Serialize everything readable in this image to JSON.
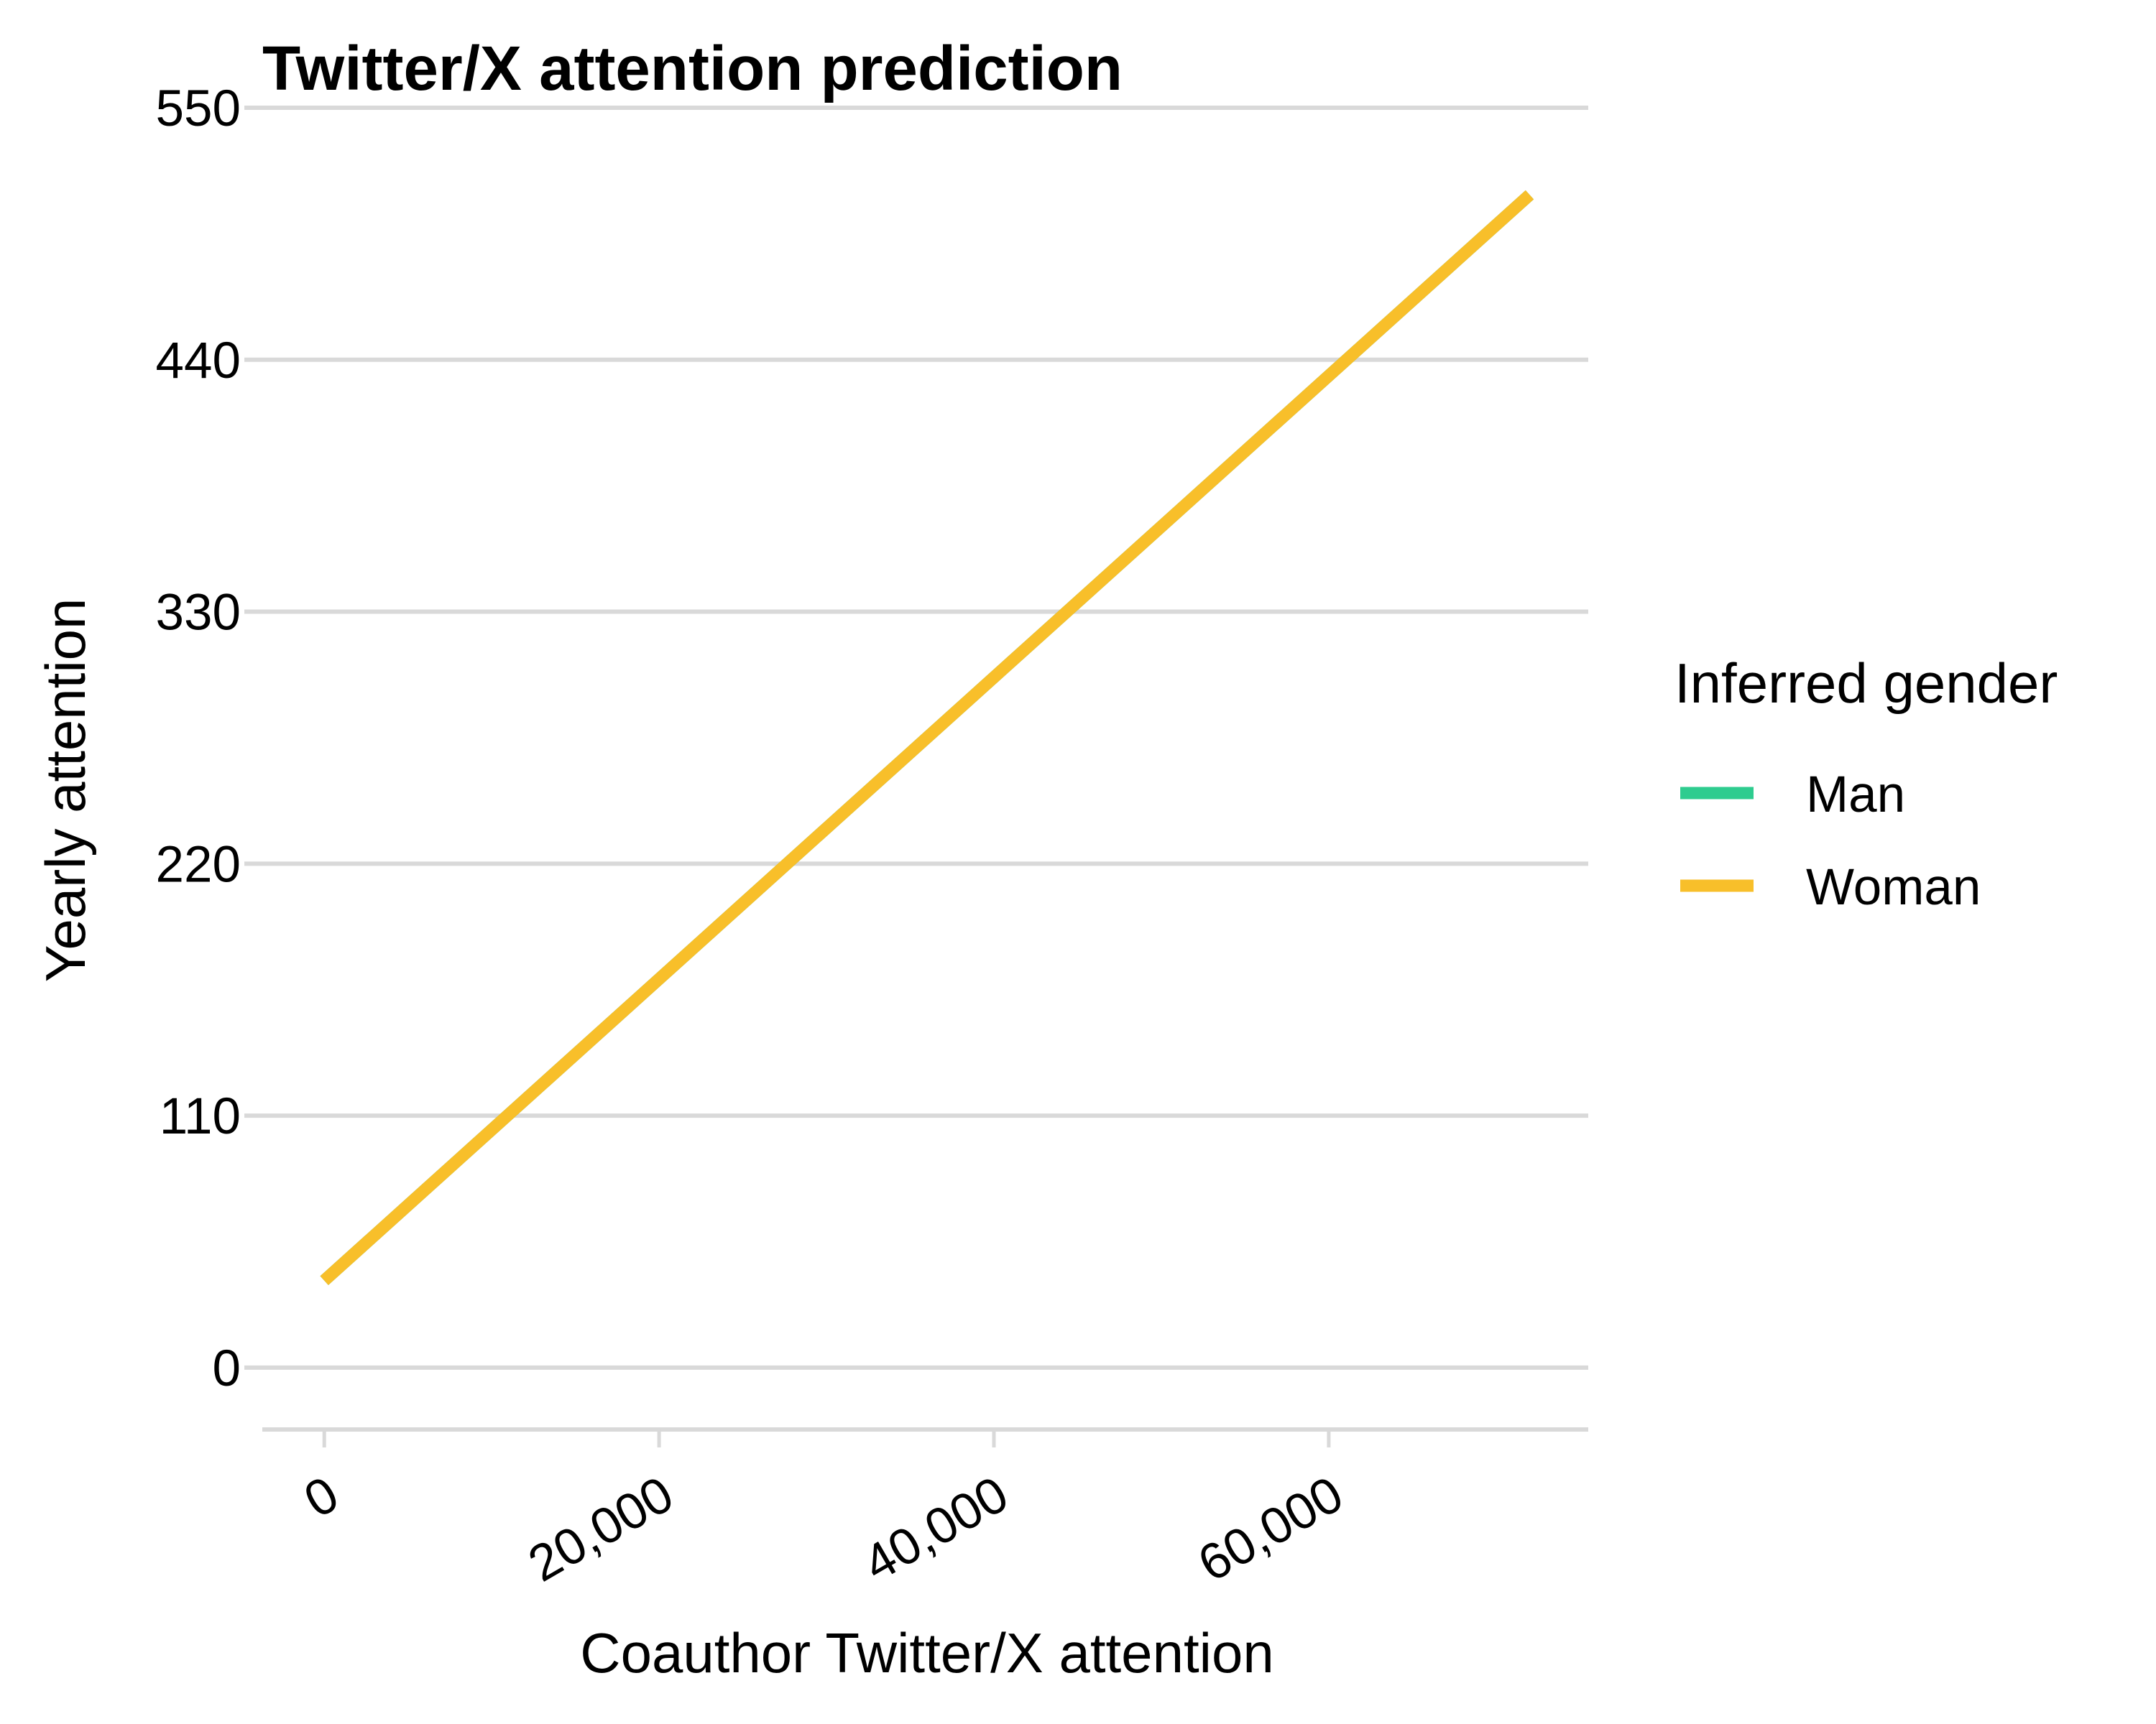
{
  "chart_data": {
    "type": "line",
    "title": "Twitter/X attention prediction",
    "xlabel": "Coauthor Twitter/X attention",
    "ylabel": "Yearly attention",
    "xlim": [
      -3700,
      75500
    ],
    "ylim": [
      -27,
      550
    ],
    "x_ticks": [
      0,
      20000,
      40000,
      60000
    ],
    "x_tick_labels": [
      "0",
      "20,000",
      "40,000",
      "60,000"
    ],
    "y_ticks": [
      0,
      110,
      220,
      330,
      440,
      550
    ],
    "y_tick_labels": [
      "0",
      "110",
      "220",
      "330",
      "440",
      "550"
    ],
    "grid": "horizontal",
    "legend": {
      "title": "Inferred gender",
      "position": "right",
      "entries": [
        {
          "label": "Man",
          "color": "#2ecc8f"
        },
        {
          "label": "Woman",
          "color": "#f8bf2a"
        }
      ]
    },
    "series": [
      {
        "name": "Man",
        "color": "#2ecc8f",
        "x": [
          0,
          72000
        ],
        "y": [
          38,
          512
        ]
      },
      {
        "name": "Woman",
        "color": "#f8bf2a",
        "x": [
          0,
          72000
        ],
        "y": [
          38,
          512
        ]
      }
    ]
  }
}
